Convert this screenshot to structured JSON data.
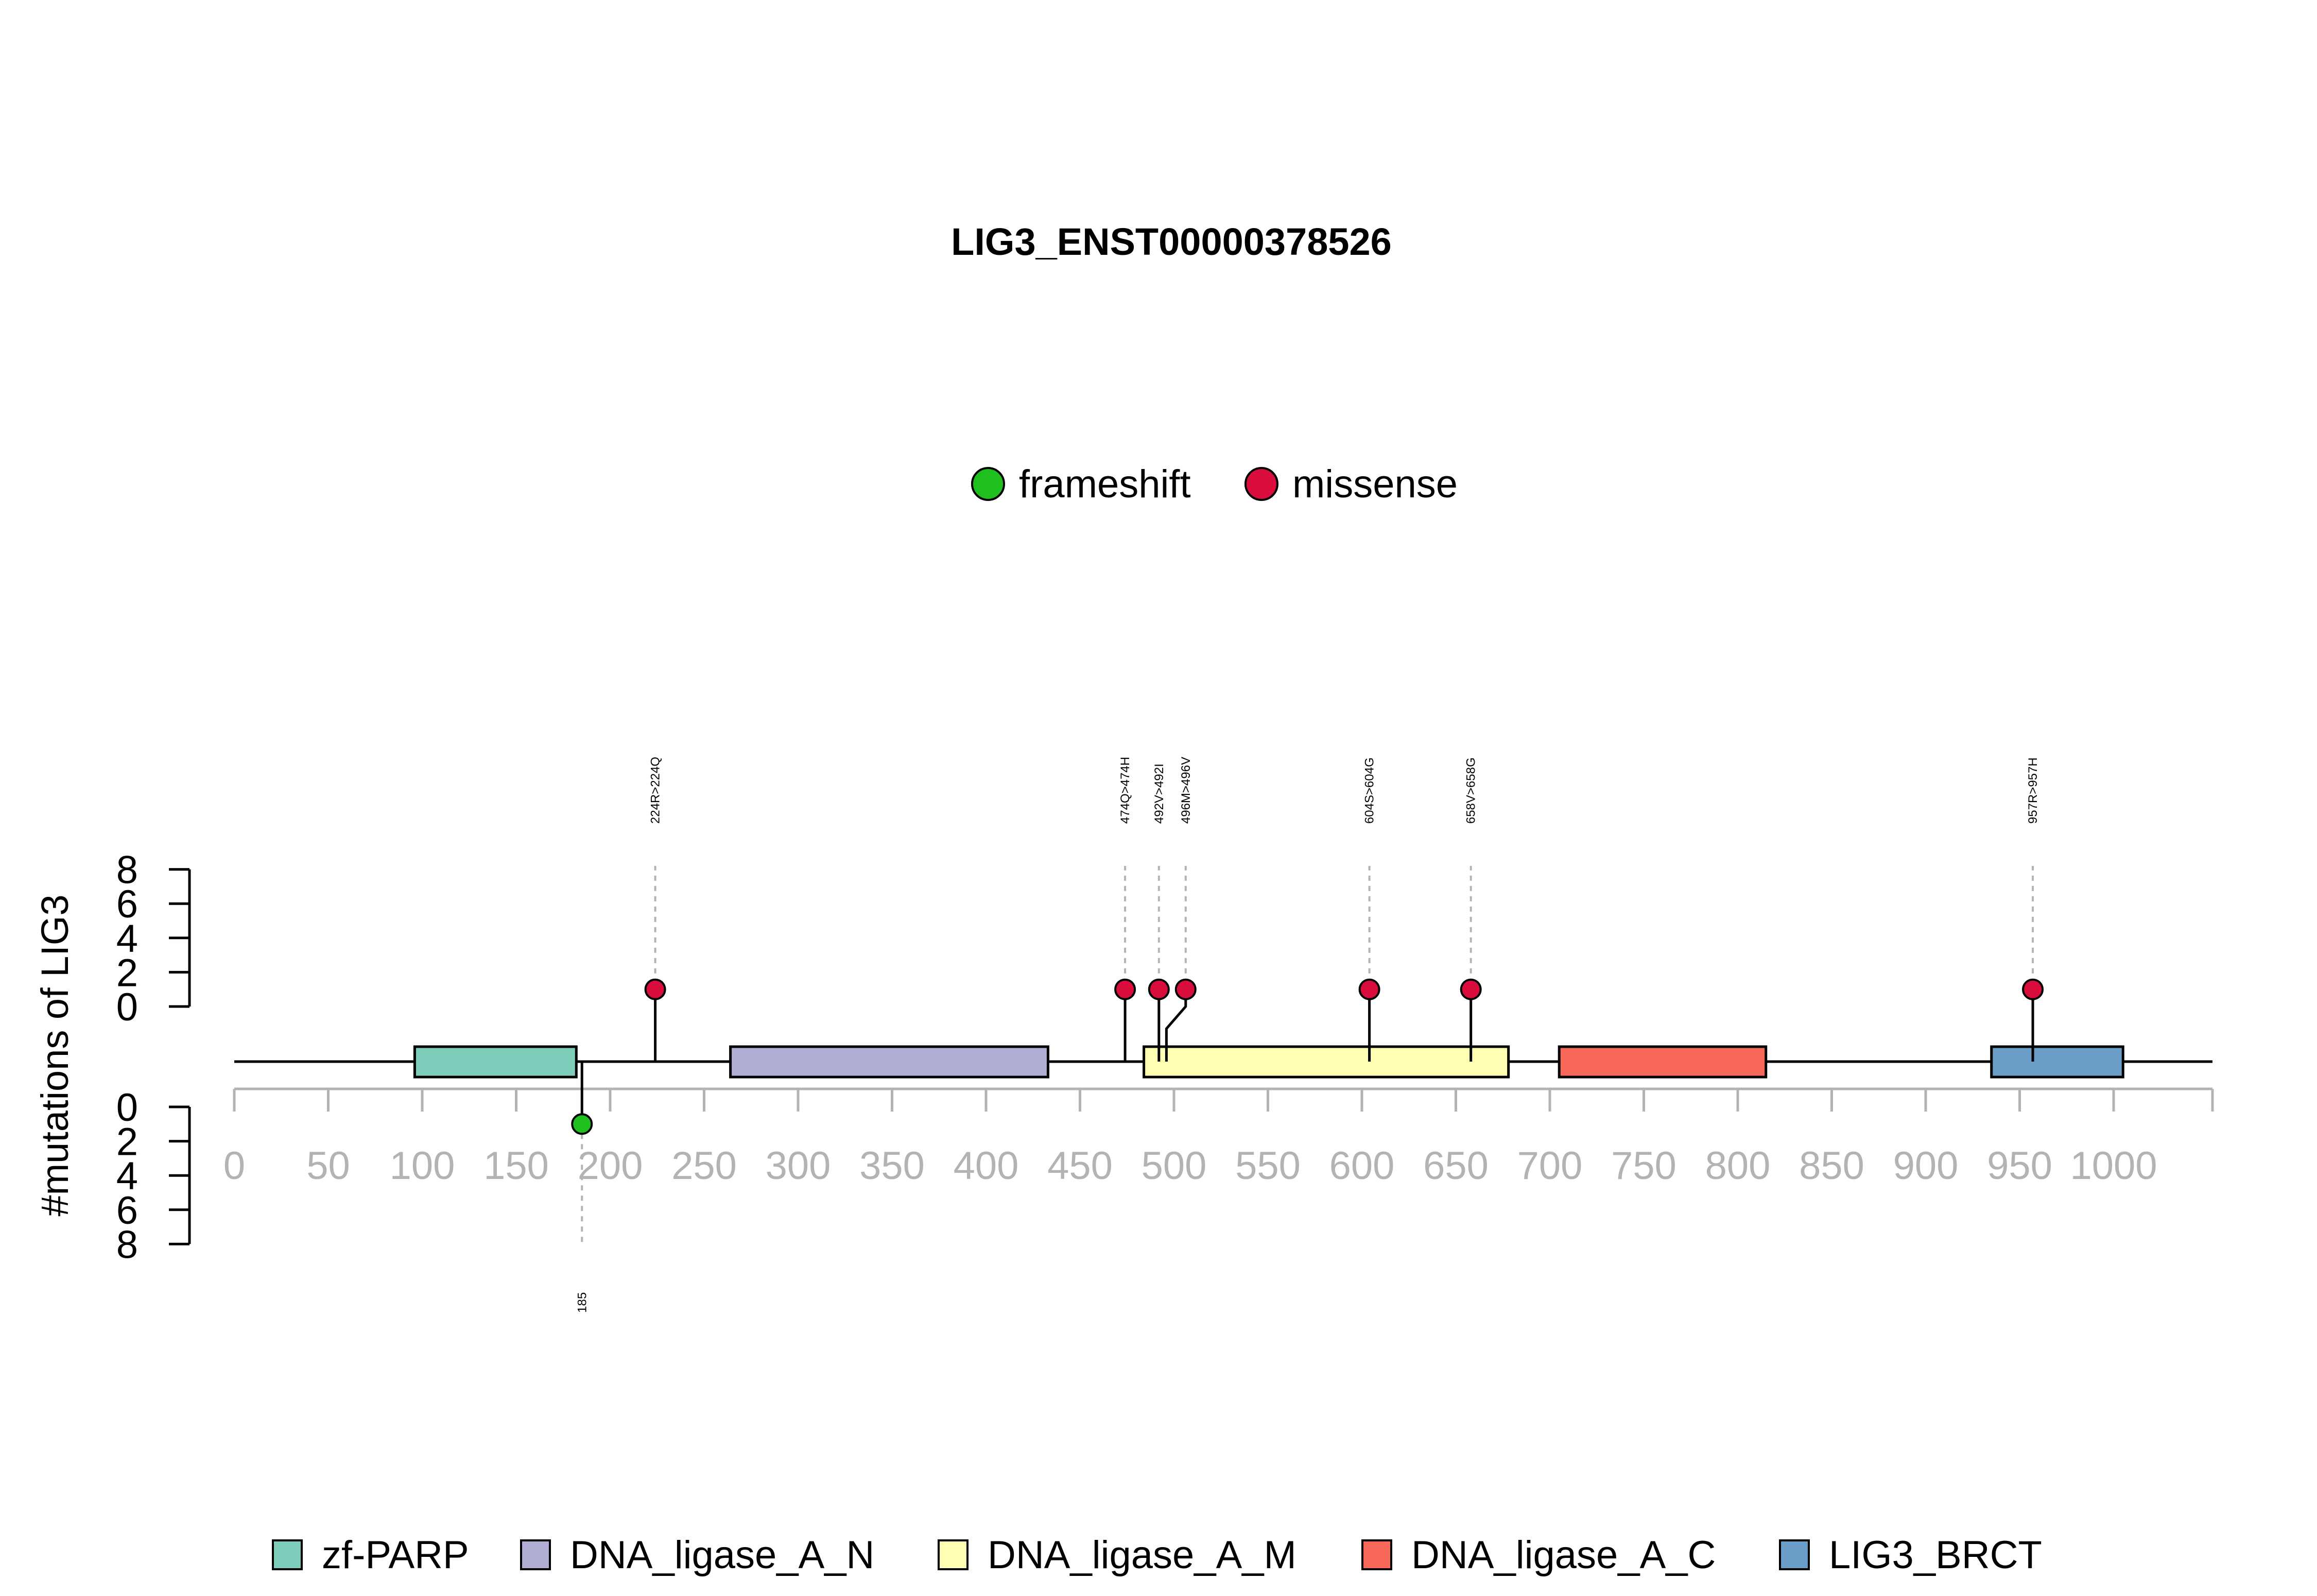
{
  "chart_data": {
    "type": "lollipop",
    "title": "LIG3_ENST00000378526",
    "ylabel": "#mutations of LIG3",
    "xlim": [
      0,
      1050
    ],
    "x_ticks": [
      "0",
      "50",
      "100",
      "150",
      "200",
      "250",
      "300",
      "350",
      "400",
      "450",
      "500",
      "550",
      "600",
      "650",
      "700",
      "750",
      "800",
      "850",
      "900",
      "950",
      "1000"
    ],
    "y_ticks": [
      "0",
      "2",
      "4",
      "6",
      "8"
    ],
    "ylim": [
      0,
      8
    ],
    "mutation_legend": [
      {
        "name": "frameshift",
        "color": "#1fbf1f"
      },
      {
        "name": "missense",
        "color": "#d90d3c"
      }
    ],
    "domain_legend": [
      {
        "name": "zf-PARP",
        "color": "#7fcdbb"
      },
      {
        "name": "DNA_ligase_A_N",
        "color": "#b0aed4"
      },
      {
        "name": "DNA_ligase_A_M",
        "color": "#ffffb3"
      },
      {
        "name": "DNA_ligase_A_C",
        "color": "#f8695a"
      },
      {
        "name": "LIG3_BRCT",
        "color": "#6a9ec9"
      }
    ],
    "domains": [
      {
        "name": "zf-PARP",
        "start": 96,
        "end": 182
      },
      {
        "name": "DNA_ligase_A_N",
        "start": 264,
        "end": 433
      },
      {
        "name": "DNA_ligase_A_M",
        "start": 484,
        "end": 678
      },
      {
        "name": "DNA_ligase_A_C",
        "start": 705,
        "end": 815
      },
      {
        "name": "LIG3_BRCT",
        "start": 935,
        "end": 1005
      }
    ],
    "protein_length": 1050,
    "mutations_top": [
      {
        "label": "224R>224Q",
        "pos": 224,
        "count": 1,
        "type": "missense"
      },
      {
        "label": "474Q>474H",
        "pos": 474,
        "count": 1,
        "type": "missense"
      },
      {
        "label": "492V>492I",
        "pos": 492,
        "count": 1,
        "type": "missense"
      },
      {
        "label": "496M>496V",
        "pos": 496,
        "count": 1,
        "type": "missense"
      },
      {
        "label": "604S>604G",
        "pos": 604,
        "count": 1,
        "type": "missense"
      },
      {
        "label": "658V>658G",
        "pos": 658,
        "count": 1,
        "type": "missense"
      },
      {
        "label": "957R>957H",
        "pos": 957,
        "count": 1,
        "type": "missense"
      }
    ],
    "mutations_bottom": [
      {
        "label": "185",
        "pos": 185,
        "count": 1,
        "type": "frameshift"
      }
    ]
  }
}
